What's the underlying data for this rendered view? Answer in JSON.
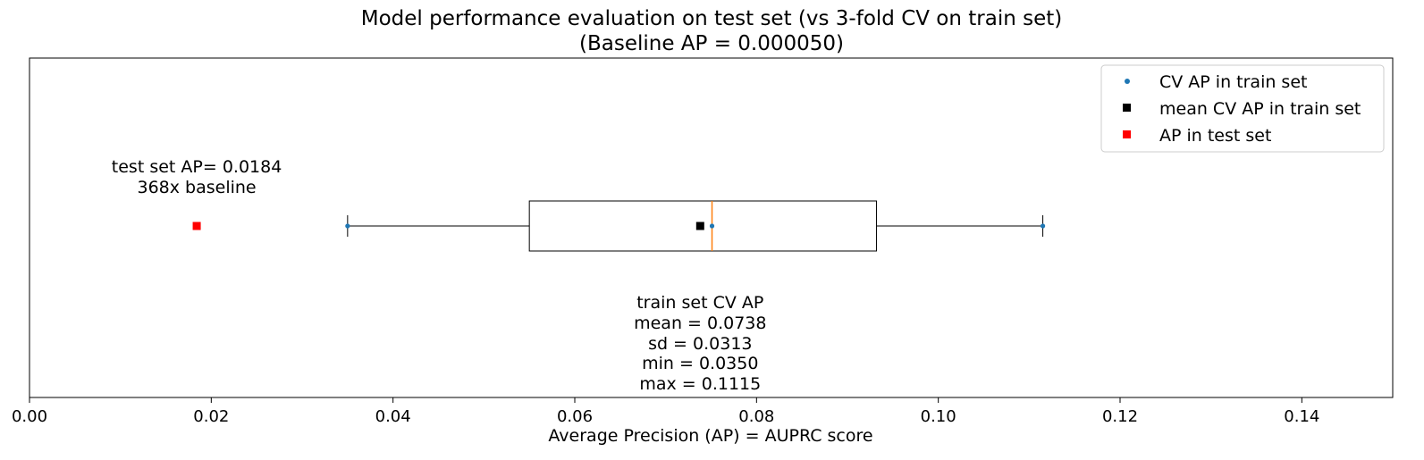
{
  "chart_data": {
    "type": "box",
    "title": [
      "Model performance evaluation on test set (vs 3-fold CV on train set)",
      "(Baseline AP = 0.000050)"
    ],
    "xlabel": "Average Precision (AP) = AUPRC score",
    "ylabel": "",
    "xlim": [
      0.0,
      0.15
    ],
    "xticks": [
      0.0,
      0.02,
      0.04,
      0.06,
      0.08,
      0.1,
      0.12,
      0.14
    ],
    "xtick_labels": [
      "0.00",
      "0.02",
      "0.04",
      "0.06",
      "0.08",
      "0.10",
      "0.12",
      "0.14"
    ],
    "grid": false,
    "legend_position": "top-right",
    "box": {
      "whisker_low": 0.035,
      "q1": 0.055,
      "median": 0.0751,
      "q3": 0.0932,
      "whisker_high": 0.1115
    },
    "series": [
      {
        "name": "CV AP in train set",
        "marker": "dot",
        "color": "#1f77b4",
        "x": [
          0.035,
          0.0751,
          0.1115
        ]
      },
      {
        "name": "mean CV AP in train set",
        "marker": "square",
        "color": "#000000",
        "x": [
          0.0738
        ]
      },
      {
        "name": "AP in test set",
        "marker": "square",
        "color": "#ff0000",
        "x": [
          0.0184
        ]
      }
    ],
    "annotations": {
      "test": [
        "test set AP= 0.0184",
        "368x baseline"
      ],
      "train": [
        "train set CV AP",
        "mean = 0.0738",
        "sd = 0.0313",
        "min = 0.0350",
        "max = 0.1115"
      ]
    },
    "colors": {
      "median": "#ff7f0e",
      "box": "#000000"
    }
  }
}
